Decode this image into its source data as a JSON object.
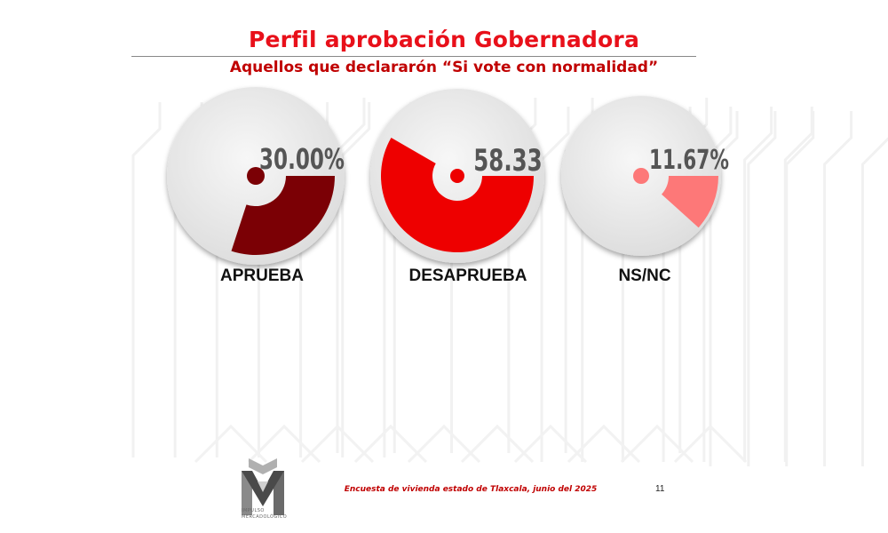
{
  "title": "Perfil aprobación Gobernadora",
  "subtitle": "Aquellos que declararón “Si vote con normalidad”",
  "colors": {
    "title": "#e8101a",
    "subtitle": "#c00000",
    "footer": "#c00000",
    "disc": "#e4e4e4",
    "track": "#f3f3f3",
    "value_text": "#555555"
  },
  "chart_data": {
    "type": "pie",
    "categories": [
      "APRUEBA",
      "DESAPRUEBA",
      "NS/NC"
    ],
    "values": [
      30.0,
      58.33,
      11.67
    ],
    "value_labels": [
      "30.00%",
      "58.33",
      "11.67%"
    ],
    "colors": [
      "#7b0005",
      "#ee0000",
      "#fd7878"
    ],
    "unit": "%",
    "max": 100
  },
  "footer": {
    "source": "Encuesta de vivienda estado de Tlaxcala, junio   del 2025",
    "page_number": "11",
    "logo_text": [
      "IMPULSO",
      "MERCADOLÓGICO"
    ]
  }
}
